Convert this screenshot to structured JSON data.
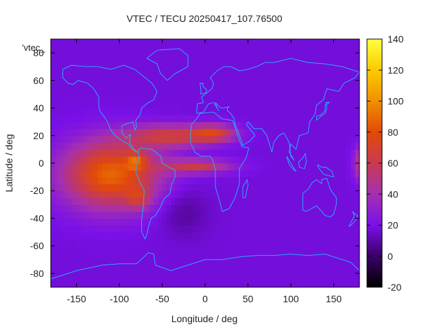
{
  "chart_data": {
    "type": "heatmap",
    "title": "VTEC / TECU 20250417_107.76500",
    "key_label": "'vtec_",
    "xlabel": "Longitude / deg",
    "ylabel": "Latitude / deg",
    "xlim": [
      -180,
      180
    ],
    "ylim": [
      -90,
      90
    ],
    "x_ticks": [
      -150,
      -100,
      -50,
      0,
      50,
      100,
      150
    ],
    "y_ticks": [
      -80,
      -60,
      -40,
      -20,
      0,
      20,
      40,
      60,
      80
    ],
    "colorbar": {
      "range": [
        -20,
        140
      ],
      "ticks": [
        -20,
        0,
        20,
        40,
        60,
        80,
        100,
        120,
        140
      ],
      "palette": [
        "#000000",
        "#3a0066",
        "#7a10e8",
        "#a530b0",
        "#c83a50",
        "#e24a08",
        "#f09000",
        "#fbcb00",
        "#ffff40"
      ]
    },
    "field": {
      "background_tecu": 18,
      "grid_step_deg": 5,
      "features": [
        {
          "name": "american-equatorial-anomaly",
          "lon": -110,
          "lat": -8,
          "lon_halfwidth": 55,
          "lat_halfwidth": 24,
          "peak_tecu": 70
        },
        {
          "name": "south-american-peak",
          "lon": -78,
          "lat": -25,
          "lon_halfwidth": 14,
          "lat_halfwidth": 8,
          "peak_tecu": 25
        },
        {
          "name": "equatorial-peak",
          "lon": -80,
          "lat": 2,
          "lon_halfwidth": 12,
          "lat_halfwidth": 6,
          "peak_tecu": 30
        },
        {
          "name": "northern-crest",
          "lon": -40,
          "lat": 20,
          "lon_halfwidth": 50,
          "lat_halfwidth": 8,
          "peak_tecu": 45
        },
        {
          "name": "african-northern-crest",
          "lon": 10,
          "lat": 22,
          "lon_halfwidth": 25,
          "lat_halfwidth": 6,
          "peak_tecu": 45
        },
        {
          "name": "southern-crest",
          "lon": -10,
          "lat": -2,
          "lon_halfwidth": 40,
          "lat_halfwidth": 5,
          "peak_tecu": 42
        },
        {
          "name": "east-pacific-edge",
          "lon": 185,
          "lat": 0,
          "lon_halfwidth": 10,
          "lat_halfwidth": 12,
          "peak_tecu": 50
        },
        {
          "name": "south-atlantic-low",
          "lon": -25,
          "lat": -35,
          "lon_halfwidth": 28,
          "lat_halfwidth": 18,
          "peak_tecu": -10
        }
      ]
    },
    "coastlines": [
      {
        "name": "north-america",
        "points": [
          [
            -166,
            68
          ],
          [
            -156,
            71
          ],
          [
            -140,
            70
          ],
          [
            -125,
            70
          ],
          [
            -110,
            68
          ],
          [
            -95,
            71
          ],
          [
            -82,
            68
          ],
          [
            -70,
            62
          ],
          [
            -62,
            58
          ],
          [
            -56,
            52
          ],
          [
            -60,
            46
          ],
          [
            -66,
            44
          ],
          [
            -70,
            42
          ],
          [
            -74,
            40
          ],
          [
            -76,
            35
          ],
          [
            -81,
            31
          ],
          [
            -80,
            26
          ],
          [
            -82,
            24
          ],
          [
            -84,
            30
          ],
          [
            -90,
            29
          ],
          [
            -97,
            27
          ],
          [
            -97,
            22
          ],
          [
            -92,
            18
          ],
          [
            -87,
            21
          ],
          [
            -88,
            15
          ],
          [
            -84,
            11
          ],
          [
            -80,
            8
          ],
          [
            -85,
            10
          ],
          [
            -90,
            14
          ],
          [
            -96,
            16
          ],
          [
            -105,
            20
          ],
          [
            -110,
            24
          ],
          [
            -114,
            30
          ],
          [
            -118,
            34
          ],
          [
            -123,
            38
          ],
          [
            -124,
            42
          ],
          [
            -124,
            48
          ],
          [
            -130,
            54
          ],
          [
            -137,
            58
          ],
          [
            -148,
            60
          ],
          [
            -154,
            57
          ],
          [
            -160,
            58
          ],
          [
            -166,
            62
          ],
          [
            -166,
            68
          ]
        ]
      },
      {
        "name": "greenland",
        "points": [
          [
            -55,
            82
          ],
          [
            -30,
            83
          ],
          [
            -20,
            78
          ],
          [
            -20,
            70
          ],
          [
            -35,
            65
          ],
          [
            -44,
            60
          ],
          [
            -52,
            65
          ],
          [
            -56,
            72
          ],
          [
            -68,
            76
          ],
          [
            -60,
            80
          ],
          [
            -55,
            82
          ]
        ]
      },
      {
        "name": "south-america",
        "points": [
          [
            -80,
            8
          ],
          [
            -75,
            11
          ],
          [
            -62,
            10
          ],
          [
            -52,
            5
          ],
          [
            -50,
            0
          ],
          [
            -42,
            -3
          ],
          [
            -35,
            -5
          ],
          [
            -35,
            -10
          ],
          [
            -39,
            -15
          ],
          [
            -41,
            -22
          ],
          [
            -48,
            -26
          ],
          [
            -53,
            -33
          ],
          [
            -58,
            -38
          ],
          [
            -63,
            -40
          ],
          [
            -66,
            -46
          ],
          [
            -68,
            -52
          ],
          [
            -70,
            -55
          ],
          [
            -74,
            -50
          ],
          [
            -74,
            -42
          ],
          [
            -72,
            -30
          ],
          [
            -71,
            -20
          ],
          [
            -76,
            -14
          ],
          [
            -81,
            -6
          ],
          [
            -80,
            -2
          ],
          [
            -77,
            4
          ],
          [
            -78,
            8
          ],
          [
            -80,
            8
          ]
        ]
      },
      {
        "name": "africa",
        "points": [
          [
            -17,
            21
          ],
          [
            -16,
            28
          ],
          [
            -10,
            32
          ],
          [
            -6,
            36
          ],
          [
            10,
            37
          ],
          [
            20,
            32
          ],
          [
            32,
            31
          ],
          [
            34,
            28
          ],
          [
            38,
            20
          ],
          [
            43,
            12
          ],
          [
            51,
            11
          ],
          [
            48,
            4
          ],
          [
            40,
            -4
          ],
          [
            40,
            -15
          ],
          [
            35,
            -25
          ],
          [
            28,
            -33
          ],
          [
            20,
            -35
          ],
          [
            18,
            -30
          ],
          [
            12,
            -17
          ],
          [
            12,
            -5
          ],
          [
            9,
            2
          ],
          [
            6,
            5
          ],
          [
            -5,
            5
          ],
          [
            -12,
            8
          ],
          [
            -17,
            15
          ],
          [
            -17,
            21
          ]
        ]
      },
      {
        "name": "eurasia",
        "points": [
          [
            -10,
            36
          ],
          [
            -9,
            43
          ],
          [
            -2,
            44
          ],
          [
            -4,
            48
          ],
          [
            2,
            51
          ],
          [
            8,
            54
          ],
          [
            10,
            58
          ],
          [
            6,
            62
          ],
          [
            14,
            67
          ],
          [
            22,
            70
          ],
          [
            30,
            70
          ],
          [
            40,
            67
          ],
          [
            50,
            68
          ],
          [
            60,
            70
          ],
          [
            70,
            73
          ],
          [
            80,
            73
          ],
          [
            100,
            76
          ],
          [
            120,
            73
          ],
          [
            140,
            72
          ],
          [
            160,
            70
          ],
          [
            180,
            66
          ],
          [
            175,
            62
          ],
          [
            162,
            58
          ],
          [
            156,
            52
          ],
          [
            142,
            54
          ],
          [
            138,
            46
          ],
          [
            130,
            42
          ],
          [
            128,
            35
          ],
          [
            122,
            30
          ],
          [
            120,
            22
          ],
          [
            110,
            20
          ],
          [
            106,
            10
          ],
          [
            100,
            14
          ],
          [
            98,
            8
          ],
          [
            104,
            2
          ],
          [
            100,
            5
          ],
          [
            98,
            15
          ],
          [
            92,
            22
          ],
          [
            86,
            20
          ],
          [
            80,
            15
          ],
          [
            78,
            8
          ],
          [
            72,
            20
          ],
          [
            66,
            25
          ],
          [
            57,
            25
          ],
          [
            50,
            30
          ],
          [
            48,
            28
          ],
          [
            56,
            22
          ],
          [
            58,
            20
          ],
          [
            52,
            16
          ],
          [
            44,
            13
          ],
          [
            42,
            17
          ],
          [
            35,
            28
          ],
          [
            34,
            32
          ],
          [
            30,
            36
          ],
          [
            26,
            38
          ],
          [
            26,
            40
          ],
          [
            28,
            41
          ],
          [
            22,
            40
          ],
          [
            18,
            40
          ],
          [
            12,
            44
          ],
          [
            14,
            40
          ],
          [
            16,
            38
          ],
          [
            10,
            44
          ],
          [
            4,
            43
          ],
          [
            -2,
            37
          ],
          [
            -10,
            36
          ]
        ]
      },
      {
        "name": "britain",
        "points": [
          [
            -5,
            50
          ],
          [
            1,
            51
          ],
          [
            2,
            53
          ],
          [
            -3,
            56
          ],
          [
            -2,
            58
          ],
          [
            -6,
            58
          ],
          [
            -5,
            54
          ],
          [
            -5,
            50
          ]
        ]
      },
      {
        "name": "australia",
        "points": [
          [
            114,
            -22
          ],
          [
            114,
            -34
          ],
          [
            118,
            -35
          ],
          [
            124,
            -33
          ],
          [
            130,
            -31
          ],
          [
            136,
            -35
          ],
          [
            140,
            -38
          ],
          [
            146,
            -39
          ],
          [
            150,
            -37
          ],
          [
            153,
            -30
          ],
          [
            153,
            -25
          ],
          [
            146,
            -19
          ],
          [
            142,
            -11
          ],
          [
            136,
            -12
          ],
          [
            136,
            -15
          ],
          [
            130,
            -12
          ],
          [
            125,
            -14
          ],
          [
            120,
            -19
          ],
          [
            114,
            -22
          ]
        ]
      },
      {
        "name": "madagascar",
        "points": [
          [
            44,
            -25
          ],
          [
            47,
            -25
          ],
          [
            50,
            -16
          ],
          [
            49,
            -12
          ],
          [
            44,
            -17
          ],
          [
            44,
            -25
          ]
        ]
      },
      {
        "name": "japan",
        "points": [
          [
            130,
            31
          ],
          [
            135,
            34
          ],
          [
            140,
            36
          ],
          [
            142,
            40
          ],
          [
            141,
            44
          ],
          [
            145,
            44
          ],
          [
            140,
            42
          ],
          [
            140,
            38
          ],
          [
            135,
            35
          ],
          [
            130,
            34
          ],
          [
            130,
            31
          ]
        ]
      },
      {
        "name": "borneo",
        "points": [
          [
            109,
            1
          ],
          [
            110,
            -3
          ],
          [
            116,
            -4
          ],
          [
            118,
            1
          ],
          [
            117,
            7
          ],
          [
            113,
            3
          ],
          [
            109,
            1
          ]
        ]
      },
      {
        "name": "sumatra",
        "points": [
          [
            95,
            5
          ],
          [
            98,
            2
          ],
          [
            103,
            -3
          ],
          [
            106,
            -6
          ],
          [
            102,
            -4
          ],
          [
            98,
            -1
          ],
          [
            95,
            5
          ]
        ]
      },
      {
        "name": "new-guinea",
        "points": [
          [
            131,
            -1
          ],
          [
            136,
            -3
          ],
          [
            141,
            -3
          ],
          [
            148,
            -6
          ],
          [
            150,
            -10
          ],
          [
            143,
            -9
          ],
          [
            138,
            -8
          ],
          [
            132,
            -3
          ],
          [
            131,
            -1
          ]
        ]
      },
      {
        "name": "new-zealand",
        "points": [
          [
            172,
            -35
          ],
          [
            175,
            -37
          ],
          [
            178,
            -38
          ],
          [
            176,
            -41
          ],
          [
            172,
            -44
          ],
          [
            168,
            -46
          ],
          [
            170,
            -43
          ],
          [
            173,
            -40
          ],
          [
            174,
            -38
          ],
          [
            172,
            -35
          ]
        ]
      },
      {
        "name": "antarctica",
        "points": [
          [
            -180,
            -84
          ],
          [
            -150,
            -78
          ],
          [
            -120,
            -74
          ],
          [
            -100,
            -73
          ],
          [
            -80,
            -73
          ],
          [
            -66,
            -65
          ],
          [
            -60,
            -66
          ],
          [
            -58,
            -74
          ],
          [
            -40,
            -78
          ],
          [
            -20,
            -74
          ],
          [
            0,
            -70
          ],
          [
            20,
            -70
          ],
          [
            40,
            -68
          ],
          [
            60,
            -67
          ],
          [
            80,
            -67
          ],
          [
            100,
            -66
          ],
          [
            120,
            -67
          ],
          [
            140,
            -66
          ],
          [
            160,
            -70
          ],
          [
            170,
            -72
          ],
          [
            180,
            -78
          ]
        ]
      }
    ]
  }
}
